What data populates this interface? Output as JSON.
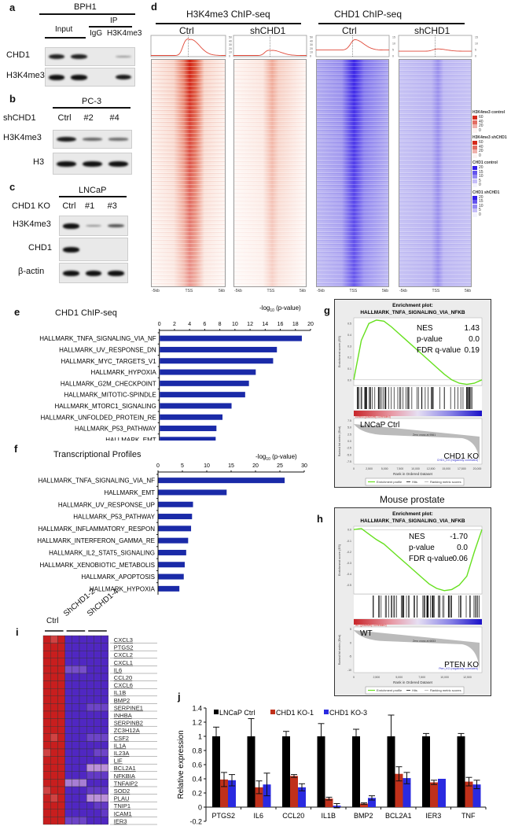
{
  "panels": {
    "a": {
      "letter": "a",
      "cell_line": "BPH1",
      "input_label": "Input",
      "ip_label": "IP",
      "lanes": [
        "IgG",
        "H3K4me3"
      ],
      "rows": [
        {
          "label": "CHD1",
          "band_intensity": [
            0.9,
            0.9,
            0.0,
            0.25
          ]
        },
        {
          "label": "H3K4me3",
          "band_intensity": [
            1.0,
            1.0,
            0.0,
            0.95
          ]
        }
      ]
    },
    "b": {
      "letter": "b",
      "cell_line": "PC-3",
      "condition_label": "shCHD1",
      "lanes": [
        "Ctrl",
        "#2",
        "#4"
      ],
      "rows": [
        {
          "label": "H3K4me3",
          "band_intensity": [
            0.95,
            0.5,
            0.45
          ]
        },
        {
          "label": "H3",
          "band_intensity": [
            1.0,
            1.0,
            1.0
          ]
        }
      ]
    },
    "c": {
      "letter": "c",
      "cell_line": "LNCaP",
      "condition_label": "CHD1 KO",
      "lanes": [
        "Ctrl",
        "#1",
        "#3"
      ],
      "rows": [
        {
          "label": "H3K4me3",
          "band_intensity": [
            1.0,
            0.3,
            0.6
          ]
        },
        {
          "label": "CHD1",
          "band_intensity": [
            1.0,
            0.0,
            0.0
          ]
        },
        {
          "label": "β-actin",
          "band_intensity": [
            1.0,
            1.0,
            1.0
          ]
        }
      ]
    },
    "d": {
      "letter": "d",
      "groups": [
        {
          "title": "H3K4me3 ChIP-seq",
          "conditions": [
            "Ctrl",
            "shCHD1"
          ],
          "profile_ticks": [
            "50",
            "40",
            "30",
            "20",
            "10",
            "0"
          ],
          "profile_peak": [
            42,
            14
          ],
          "profile_max": 50,
          "profile_base": [
            1,
            1
          ]
        },
        {
          "title": "CHD1 ChIP-seq",
          "conditions": [
            "Ctrl",
            "shCHD1"
          ],
          "profile_ticks": [
            "15",
            "10",
            "5",
            "0"
          ],
          "profile_peak": [
            14,
            6
          ],
          "profile_max": 17,
          "profile_base": [
            5,
            4
          ]
        }
      ],
      "x_axis": [
        "-5kb",
        "TSS",
        "5kb"
      ],
      "legend": [
        {
          "title": "H3K4me3 control",
          "ticks": [
            "60",
            "40",
            "20",
            "0"
          ],
          "color": "#d21f10"
        },
        {
          "title": "H3K4me3 shCHD1",
          "ticks": [
            "60",
            "40",
            "20",
            "0"
          ],
          "color": "#d21f10"
        },
        {
          "title": "CHD1 control",
          "ticks": [
            "20",
            "15",
            "10",
            "5",
            "0"
          ],
          "color": "#2a14e6"
        },
        {
          "title": "CHD1 shCHD1",
          "ticks": [
            "20",
            "15",
            "10",
            "5",
            "0"
          ],
          "color": "#2a14e6"
        }
      ]
    },
    "e": {
      "letter": "e"
    },
    "f": {
      "letter": "f"
    },
    "g": {
      "letter": "g",
      "title_line1": "Enrichment plot:",
      "title_line2": "HALLMARK_TNFA_SIGNALING_VIA_NFKB",
      "stats": [
        {
          "k": "NES",
          "v": "1.43"
        },
        {
          "k": "p-value",
          "v": "0.0"
        },
        {
          "k": "FDR q-value",
          "v": "0.19"
        }
      ],
      "left_group": "LNCaP Ctrl",
      "right_group": "CHD1 KO",
      "pos_corr": "control (positively correlated)",
      "neg_corr": "CHD1_KO (negatively correlated)",
      "zero_cross": "Zero cross at 9561",
      "es_ticks": [
        "0.5",
        "0.4",
        "0.3",
        "0.2",
        "0.1",
        "0.0"
      ],
      "es_range": [
        -0.05,
        0.55
      ],
      "metric_ticks": [
        "7.5",
        "5.0",
        "2.5",
        "0.0",
        "-2.5",
        "-5.0",
        "-7.5"
      ],
      "x_ticks": [
        "0",
        "2,500",
        "5,000",
        "7,500",
        "10,000",
        "12,500",
        "15,000",
        "17,500",
        "20,000"
      ],
      "es_curve": [
        0,
        0.35,
        0.5,
        0.53,
        0.52,
        0.47,
        0.41,
        0.35,
        0.29,
        0.23,
        0.17,
        0.11,
        0.05,
        0.0,
        -0.03,
        -0.04,
        -0.03,
        0.0
      ],
      "xlabel": "Rank in Ordered Dataset",
      "ylabel_es": "Enrichment score (ES)",
      "ylabel_metric": "Ranked list metric (tTest)",
      "legend": [
        "Enrichment profile",
        "Hits",
        "Ranking metric scores"
      ]
    },
    "h": {
      "letter": "h",
      "header": "Mouse prostate",
      "title_line1": "Enrichment plot:",
      "title_line2": "HALLMARK_TNFA_SIGNALING_VIA_NFKB",
      "stats": [
        {
          "k": "NES",
          "v": "-1.70"
        },
        {
          "k": "p-value",
          "v": "0.0"
        },
        {
          "k": "FDR q-value",
          "v": "0.06"
        }
      ],
      "left_group": "WT",
      "right_group": "PTEN KO",
      "pos_corr": "WT (positively correlated)",
      "neg_corr": "Pten_KO (negatively correlated)",
      "zero_cross": "Zero cross at 6833",
      "es_ticks": [
        "0.0",
        "-0.1",
        "-0.2",
        "-0.3",
        "-0.4",
        "-0.5"
      ],
      "es_range": [
        -0.58,
        0.03
      ],
      "metric_ticks": [
        "5",
        "0",
        "-5",
        "-10"
      ],
      "x_ticks": [
        "0",
        "2,500",
        "5,000",
        "7,500",
        "10,000",
        "12,500"
      ],
      "es_curve": [
        0,
        0.01,
        -0.04,
        -0.09,
        -0.13,
        -0.19,
        -0.25,
        -0.31,
        -0.37,
        -0.43,
        -0.49,
        -0.53,
        -0.55,
        -0.54,
        -0.5,
        -0.42,
        -0.2,
        0.0
      ],
      "xlabel": "Rank in Ordered Dataset",
      "ylabel_es": "Enrichment score (ES)",
      "ylabel_metric": "Ranked list metric (tTest)",
      "legend": [
        "Enrichment profile",
        "Hits",
        "Ranking metric scores"
      ]
    },
    "i": {
      "letter": "i",
      "groups": [
        "Ctrl",
        "ShCHD1-2",
        "ShCHD1-4"
      ]
    },
    "j": {
      "letter": "j"
    }
  },
  "chart_data": [
    {
      "id": "e",
      "type": "bar",
      "orientation": "horizontal",
      "title": "CHD1 ChIP-seq",
      "xlabel": "-log10 (p-value)",
      "xlim": [
        0,
        20
      ],
      "xticks": [
        "0",
        "2",
        "4",
        "6",
        "8",
        "10",
        "12",
        "14",
        "16",
        "18",
        "20"
      ],
      "categories": [
        "HALLMARK_TNFA_SIGNALING_VIA_NF",
        "HALLMARK_UV_RESPONSE_DN",
        "HALLMARK_MYC_TARGETS_V1",
        "HALLMARK_HYPOXIA",
        "HALLMARK_G2M_CHECKPOINT",
        "HALLMARK_MITOTIC-SPINDLE",
        "HALLMARK_MTORC1_SIGNALING",
        "HALLMARK_UNFOLDED_PROTEIN_RE",
        "HALLMARK_P53_PATHWAY",
        "HALLMARK_EMT"
      ],
      "values": [
        18.8,
        15.5,
        15.0,
        12.7,
        11.8,
        11.3,
        9.5,
        8.3,
        7.5,
        7.4
      ],
      "color": "#1a2aa8"
    },
    {
      "id": "f",
      "type": "bar",
      "orientation": "horizontal",
      "title": "Transcriptional Profiles",
      "xlabel": "-log10 (p-value)",
      "xlim": [
        0,
        30
      ],
      "xticks": [
        "0",
        "5",
        "10",
        "15",
        "20",
        "25",
        "30"
      ],
      "categories": [
        "HALLMARK_TNFA_SIGNALING_VIA_NF",
        "HALLMARK_EMT",
        "HALLMARK_UV_RESPONSE_UP",
        "HALLMARK_P53_PATHWAY",
        "HALLMARK_INFLAMMATORY_RESPON",
        "HALLMARK_INTERFERON_GAMMA_RE",
        "HALLMARK_IL2_STAT5_SIGNALING",
        "HALLMARK_XENOBIOTIC_METABOLIS",
        "HALLMARK_APOPTOSIS",
        "HALLMARK_HYPOXIA"
      ],
      "values": [
        25.9,
        14.0,
        7.1,
        6.9,
        6.7,
        6.1,
        5.7,
        5.4,
        5.2,
        4.3
      ],
      "color": "#1a2aa8"
    },
    {
      "id": "i",
      "type": "heatmap",
      "columns": [
        "Ctrl",
        "Ctrl",
        "Ctrl",
        "ShCHD1-2",
        "ShCHD1-2",
        "ShCHD1-2",
        "ShCHD1-4",
        "ShCHD1-4",
        "ShCHD1-4"
      ],
      "rows": [
        "CXCL3",
        "PTGS2",
        "CXCL2",
        "CXCL1",
        "IL6",
        "CCL20",
        "CXCL6",
        "IL1B",
        "BMP2",
        "SERPINE1",
        "INHBA",
        "SERPINB2",
        "ZC3H12A",
        "CSF2",
        "IL1A",
        "IL23A",
        "LIF",
        "BCL2A1",
        "NFKBIA",
        "TNFAIP2",
        "SOD2",
        "PLAU",
        "TNIP1",
        "ICAM1",
        "IER3"
      ],
      "values": [
        [
          1,
          0.7,
          1,
          -0.9,
          -0.9,
          -0.9,
          -0.9,
          -0.9,
          -0.9
        ],
        [
          1,
          1,
          1,
          -0.9,
          -0.9,
          -0.9,
          -0.9,
          -0.9,
          -0.9
        ],
        [
          1,
          1,
          1,
          -0.9,
          -0.9,
          -0.9,
          -0.9,
          -0.9,
          -0.9
        ],
        [
          1,
          1,
          1,
          -0.9,
          -0.9,
          -0.9,
          -0.9,
          -0.9,
          -0.9
        ],
        [
          1,
          1,
          1,
          -0.7,
          -0.7,
          -0.7,
          -0.9,
          -0.9,
          -0.9
        ],
        [
          1,
          1,
          1,
          -0.9,
          -0.9,
          -0.9,
          -0.9,
          -0.9,
          -0.9
        ],
        [
          1,
          1,
          1,
          -0.9,
          -0.9,
          -0.9,
          -0.9,
          -0.9,
          -0.9
        ],
        [
          1,
          1,
          1,
          -0.9,
          -0.9,
          -0.9,
          -0.9,
          -0.9,
          -0.9
        ],
        [
          1,
          1,
          1,
          -0.9,
          -0.9,
          -0.9,
          -0.9,
          -0.9,
          -0.9
        ],
        [
          1,
          1,
          1,
          -0.9,
          -0.9,
          -0.9,
          -0.75,
          -0.75,
          -0.75
        ],
        [
          1,
          1,
          1,
          -0.9,
          -0.9,
          -0.9,
          -0.9,
          -0.9,
          -0.9
        ],
        [
          1,
          1,
          1,
          -0.9,
          -0.9,
          -0.9,
          -0.9,
          -0.9,
          -0.9
        ],
        [
          1,
          1,
          1,
          -0.9,
          -0.9,
          -0.9,
          -0.9,
          -0.9,
          -0.9
        ],
        [
          1,
          0.7,
          1,
          -0.9,
          -0.9,
          -0.9,
          -0.75,
          -0.75,
          -0.75
        ],
        [
          1,
          1,
          1,
          -0.9,
          -0.9,
          -0.9,
          -0.9,
          -0.9,
          -0.9
        ],
        [
          0.7,
          1,
          1,
          -0.9,
          -0.9,
          -0.9,
          -0.9,
          -0.75,
          -0.75
        ],
        [
          1,
          1,
          1,
          -0.9,
          -0.9,
          -0.9,
          -0.9,
          -0.9,
          -0.9
        ],
        [
          1,
          1,
          1,
          -0.9,
          -0.9,
          -0.9,
          -0.35,
          -0.35,
          -0.35
        ],
        [
          1,
          1,
          1,
          -0.9,
          -0.9,
          -0.9,
          -0.8,
          -0.8,
          -0.8
        ],
        [
          1,
          1,
          1,
          -0.45,
          -0.45,
          -0.45,
          -0.9,
          -0.9,
          -0.9
        ],
        [
          0.7,
          1,
          1,
          -0.9,
          -0.9,
          -0.9,
          -0.8,
          -0.8,
          -0.8
        ],
        [
          1,
          0.7,
          1,
          -0.9,
          -0.9,
          -0.9,
          -0.35,
          -0.35,
          -0.35
        ],
        [
          1,
          1,
          1,
          -0.9,
          -0.9,
          -0.9,
          -0.9,
          -0.8,
          -0.8
        ],
        [
          1,
          1,
          1,
          -0.9,
          -0.9,
          -0.9,
          -0.9,
          -0.9,
          -0.8
        ],
        [
          1,
          1,
          1,
          -0.75,
          -0.75,
          -0.75,
          -0.9,
          -0.9,
          -0.9
        ]
      ]
    },
    {
      "id": "j",
      "type": "bar",
      "ylabel": "Relative expression",
      "xlabel": "",
      "ylim": [
        -0.2,
        1.4
      ],
      "yticks": [
        "-0.2",
        "0",
        "0.2",
        "0.4",
        "0.6",
        "0.8",
        "1",
        "1.2",
        "1.4"
      ],
      "categories": [
        "PTGS2",
        "IL6",
        "CCL20",
        "IL1B",
        "BMP2",
        "BCL2A1",
        "IER3",
        "TNF"
      ],
      "series": [
        {
          "name": "LNCaP Ctrl",
          "color": "#000000",
          "values": [
            1,
            1,
            1,
            1,
            1,
            1,
            1,
            1
          ],
          "errors": [
            0.13,
            0.25,
            0.07,
            0.18,
            0.1,
            0.3,
            0.04,
            0.04
          ]
        },
        {
          "name": "CHD1 KO-1",
          "color": "#c0301a",
          "values": [
            0.39,
            0.28,
            0.44,
            0.12,
            0.05,
            0.47,
            0.35,
            0.36
          ],
          "errors": [
            0.1,
            0.09,
            0.02,
            0.02,
            0.01,
            0.1,
            0.03,
            0.06
          ]
        },
        {
          "name": "CHD1 KO-3",
          "color": "#2a2ae0",
          "values": [
            0.38,
            0.32,
            0.28,
            0.02,
            0.13,
            0.41,
            0.4,
            0.32
          ],
          "errors": [
            0.08,
            0.16,
            0.05,
            0.03,
            0.03,
            0.08,
            0.0,
            0.06
          ]
        }
      ],
      "legend_position": "top"
    }
  ]
}
